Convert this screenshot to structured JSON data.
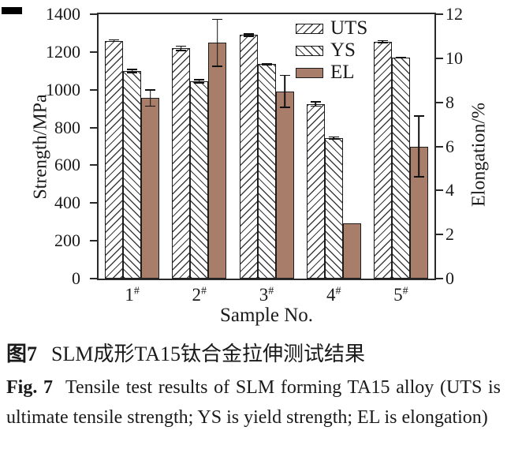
{
  "figure": {
    "caption_zh_label": "图7",
    "caption_zh_text": "SLM成形TA15钛合金拉伸测试结果",
    "caption_en_label": "Fig. 7",
    "caption_en_text": "Tensile test results of SLM forming TA15 alloy (UTS is ultimate tensile strength; YS is yield strength; EL is elongation)"
  },
  "chart_data": {
    "type": "bar",
    "categories": [
      "1",
      "2",
      "3",
      "4",
      "5"
    ],
    "category_suffix": "#",
    "xlabel": "Sample No.",
    "grid": false,
    "legend_position": "top-right-inside",
    "left_axis": {
      "label": "Strength/MPa",
      "min": 0,
      "max": 1400,
      "step": 200
    },
    "right_axis": {
      "label": "Elongation/%",
      "min": 0,
      "max": 12,
      "step": 2
    },
    "series": [
      {
        "name": "UTS",
        "axis": "left",
        "unit": "MPa",
        "pattern": "hatch-forward",
        "values": [
          1260,
          1220,
          1290,
          925,
          1255
        ],
        "errors": [
          8,
          15,
          10,
          15,
          8
        ]
      },
      {
        "name": "YS",
        "axis": "left",
        "unit": "MPa",
        "pattern": "hatch-backward",
        "values": [
          1100,
          1045,
          1135,
          745,
          1170
        ],
        "errors": [
          12,
          12,
          8,
          8,
          5
        ]
      },
      {
        "name": "EL",
        "axis": "right",
        "unit": "%",
        "pattern": "solid",
        "color": "#A87E6A",
        "values": [
          8.2,
          10.7,
          8.5,
          2.5,
          6.0
        ],
        "errors": [
          0.4,
          1.1,
          0.75,
          0,
          1.4
        ]
      }
    ]
  }
}
